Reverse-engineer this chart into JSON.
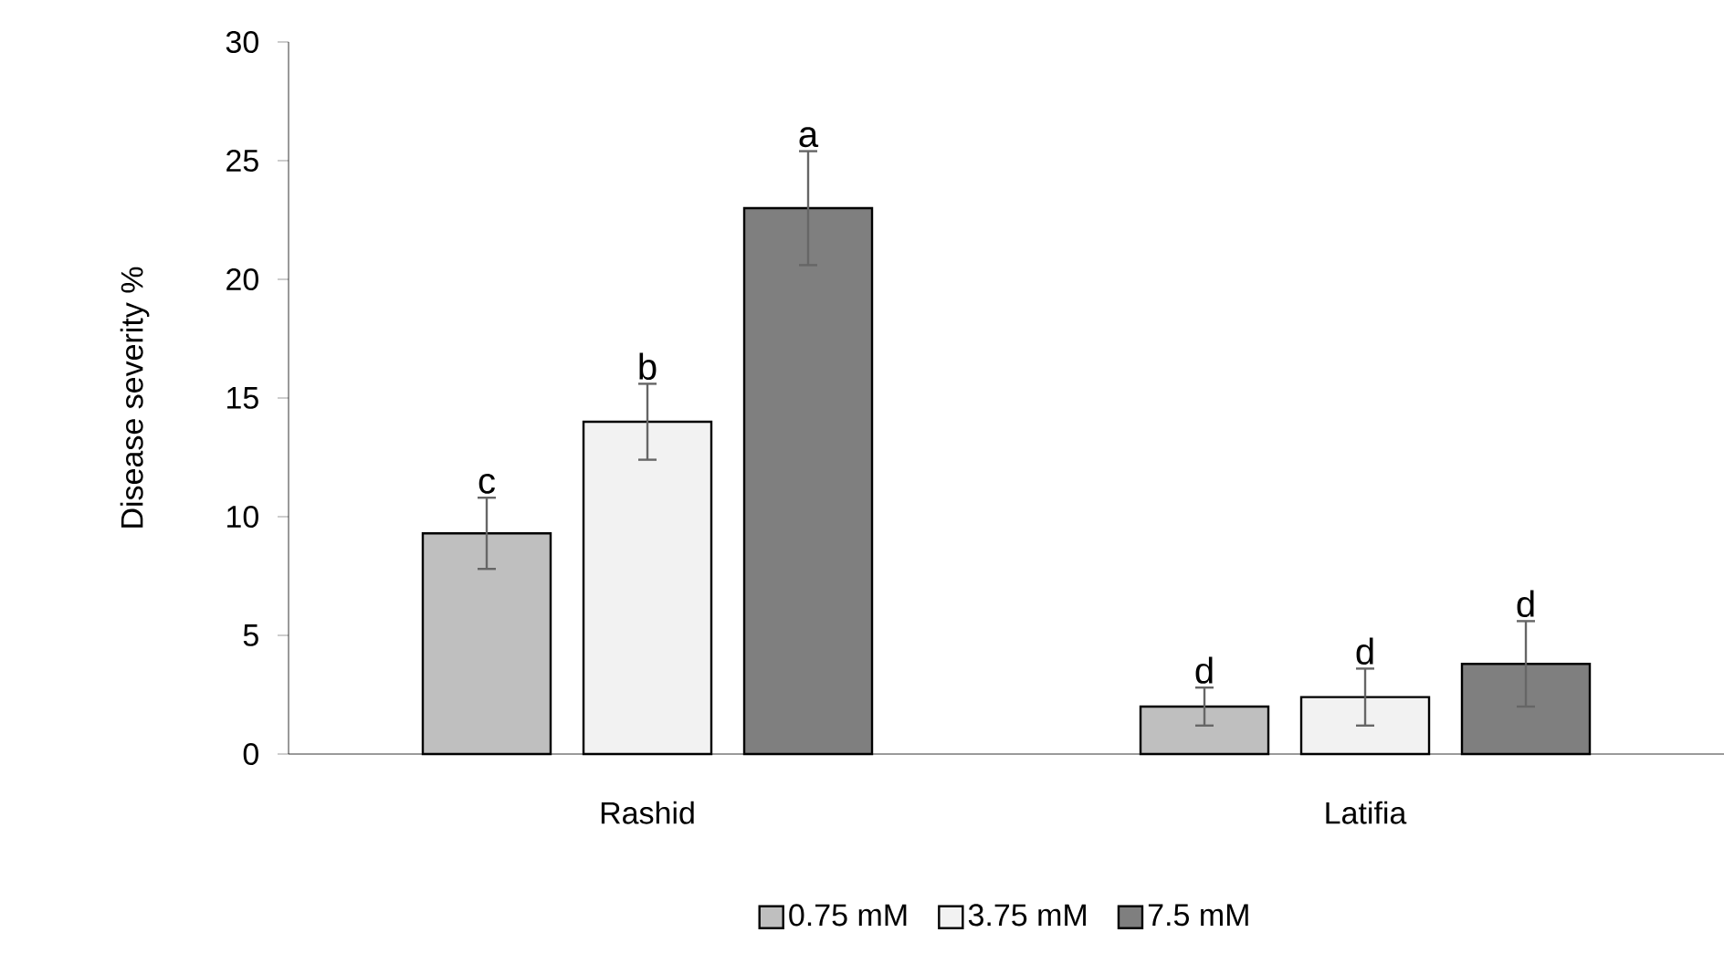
{
  "chart_data": {
    "type": "bar",
    "ylabel": "Disease severity %",
    "categories": [
      "Rashid",
      "Latifia"
    ],
    "series": [
      {
        "name": "0.75 mM",
        "color": "#bfbfbf",
        "values": [
          9.3,
          2.0
        ],
        "errors": [
          1.5,
          0.8
        ],
        "value_labels": [
          "c",
          "d"
        ]
      },
      {
        "name": "3.75 mM",
        "color": "#f2f2f2",
        "values": [
          14.0,
          2.4
        ],
        "errors": [
          1.6,
          1.2
        ],
        "value_labels": [
          "b",
          "d"
        ]
      },
      {
        "name": "7.5 mM",
        "color": "#7f7f7f",
        "values": [
          23.0,
          3.8
        ],
        "errors": [
          2.4,
          1.8
        ],
        "value_labels": [
          "a",
          "d"
        ]
      }
    ],
    "ylim": [
      0,
      30
    ],
    "yticks": [
      0,
      5,
      10,
      15,
      20,
      25,
      30
    ],
    "grid": false,
    "legend": "bottom"
  }
}
